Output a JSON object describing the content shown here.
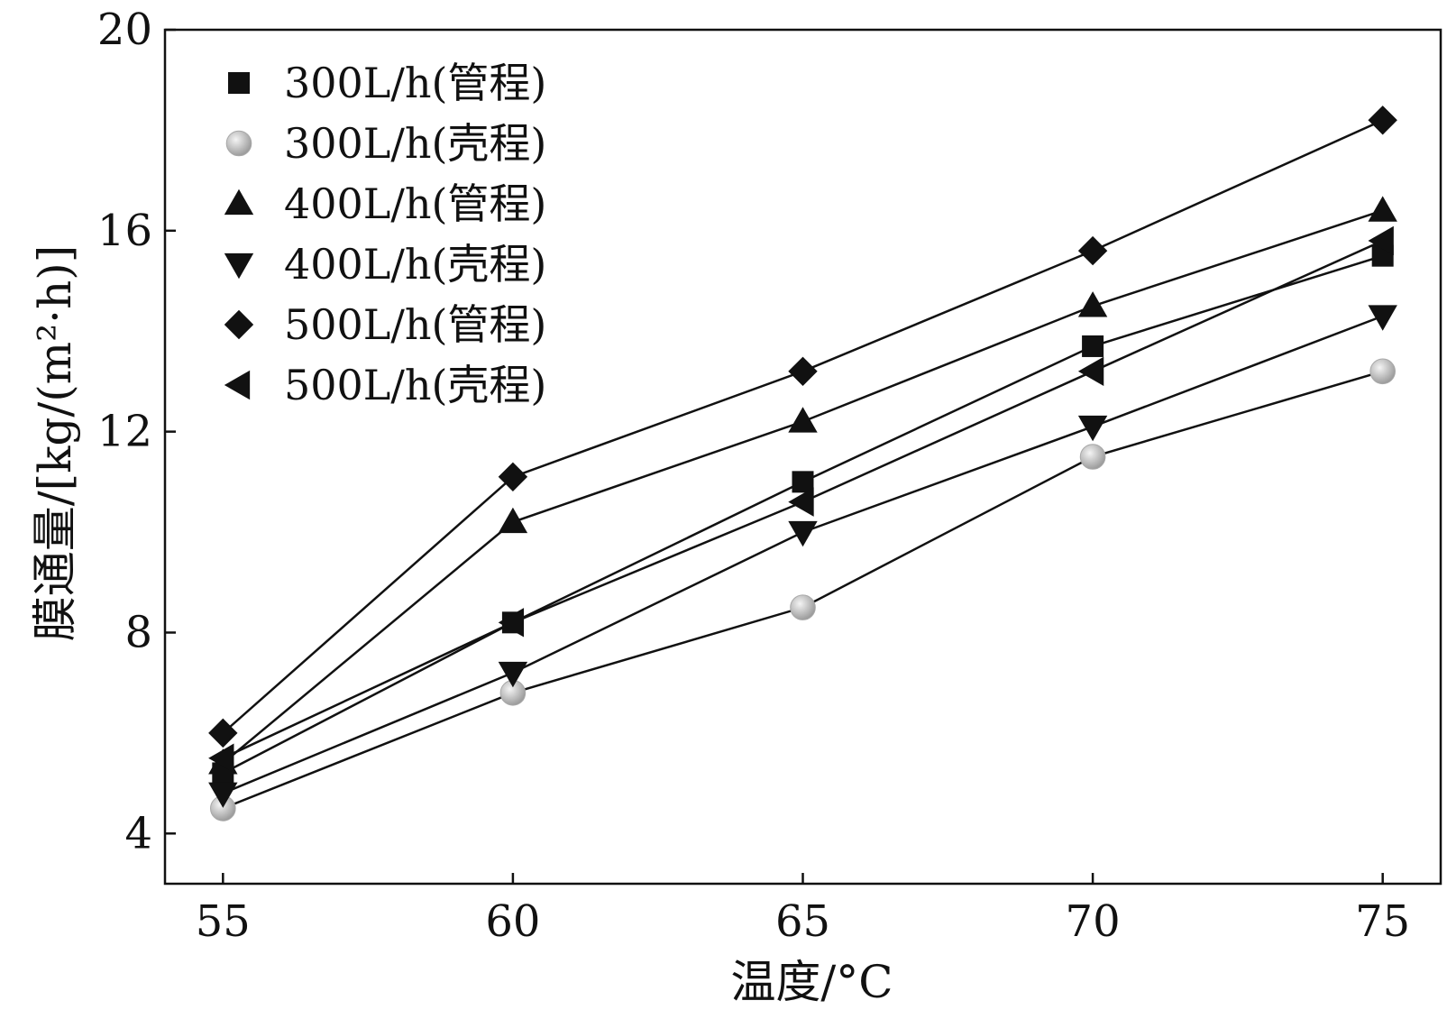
{
  "chart_data": {
    "type": "line",
    "xlabel": "温度/°C",
    "ylabel": "膜通量/[kg/(m²·h)]",
    "x": [
      55,
      60,
      65,
      70,
      75
    ],
    "xlim": [
      54,
      76
    ],
    "ylim": [
      3,
      20
    ],
    "xticks": [
      "55",
      "60",
      "65",
      "70",
      "75"
    ],
    "yticks": [
      "4",
      "8",
      "12",
      "16",
      "20"
    ],
    "xtick_values": [
      55,
      60,
      65,
      70,
      75
    ],
    "ytick_values": [
      4,
      8,
      12,
      16,
      20
    ],
    "grid": false,
    "legend_position": "top-left",
    "series": [
      {
        "name": "300L/h(管程)",
        "marker": "square",
        "color": "#111111",
        "values": [
          5.2,
          8.2,
          11.0,
          13.7,
          15.5
        ]
      },
      {
        "name": "300L/h(壳程)",
        "marker": "circle",
        "color": "#b8b8b8",
        "values": [
          4.5,
          6.8,
          8.5,
          11.5,
          13.2
        ]
      },
      {
        "name": "400L/h(管程)",
        "marker": "triangle-up",
        "color": "#111111",
        "values": [
          5.4,
          10.2,
          12.2,
          14.5,
          16.4
        ]
      },
      {
        "name": "400L/h(壳程)",
        "marker": "triangle-down",
        "color": "#111111",
        "values": [
          4.8,
          7.2,
          10.0,
          12.1,
          14.3
        ]
      },
      {
        "name": "500L/h(管程)",
        "marker": "diamond",
        "color": "#111111",
        "values": [
          6.0,
          11.1,
          13.2,
          15.6,
          18.2
        ]
      },
      {
        "name": "500L/h(壳程)",
        "marker": "triangle-left",
        "color": "#111111",
        "values": [
          5.5,
          8.2,
          10.6,
          13.2,
          15.8
        ]
      }
    ]
  }
}
